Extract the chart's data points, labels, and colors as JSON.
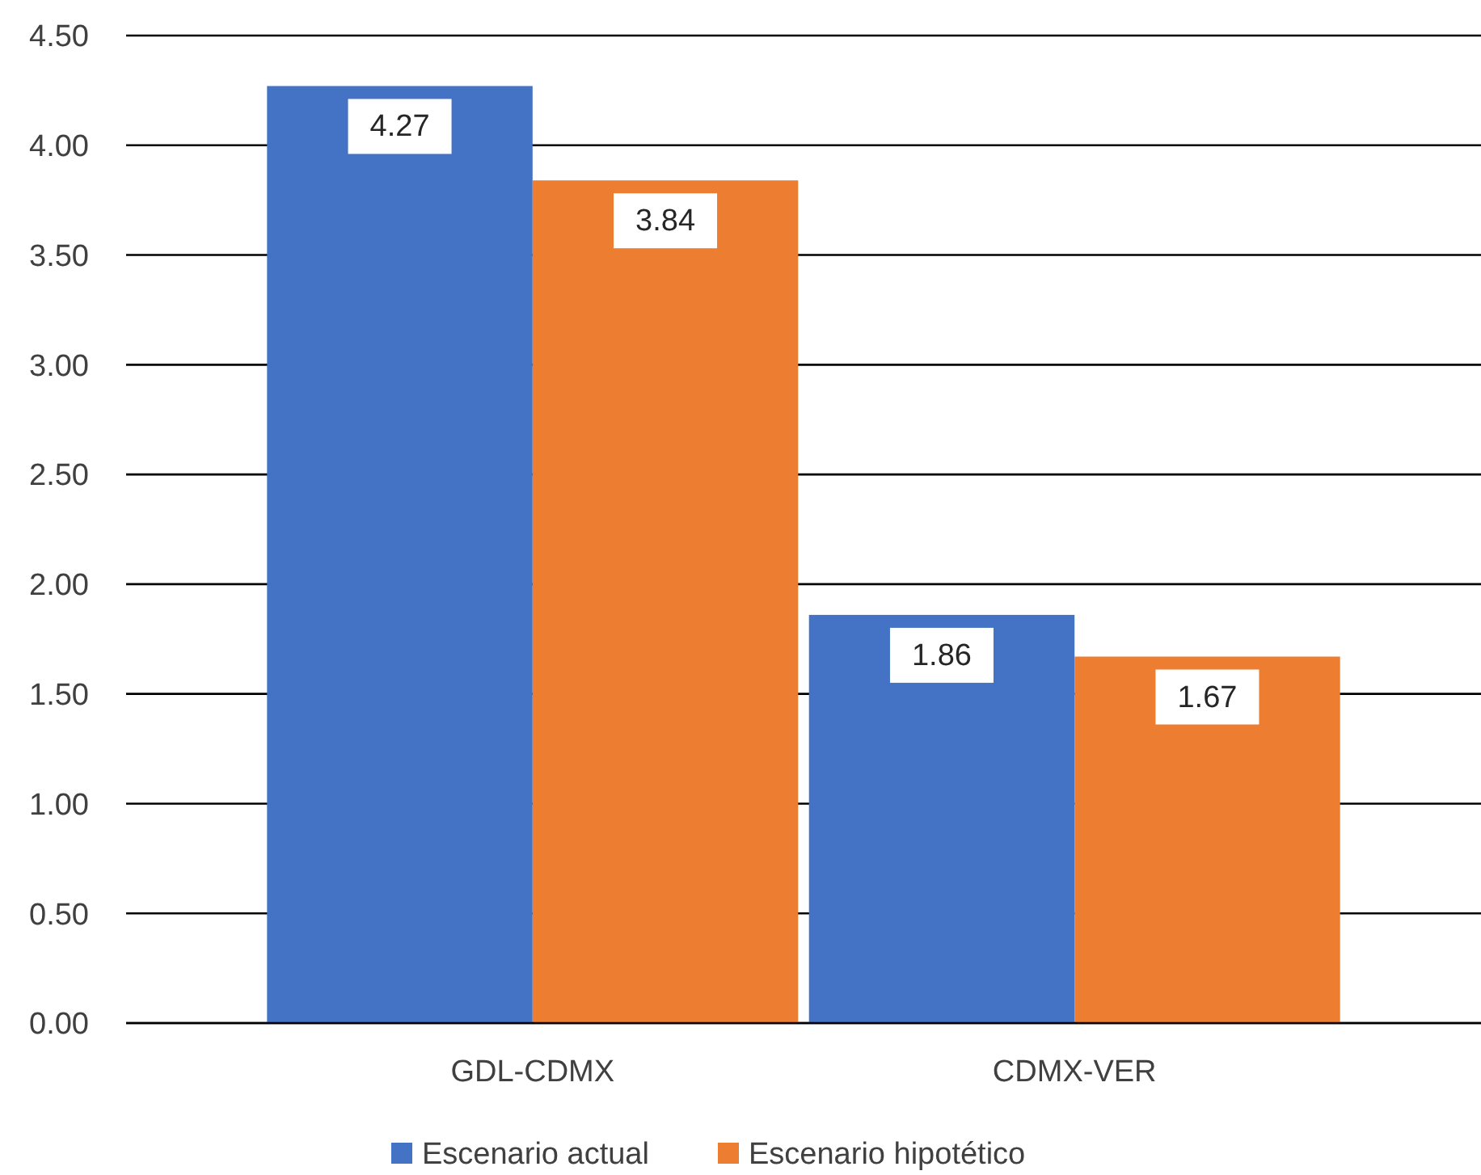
{
  "chart_data": {
    "type": "bar",
    "categories": [
      "GDL-CDMX",
      "CDMX-VER"
    ],
    "series": [
      {
        "name": "Escenario actual",
        "color": "#4472c4",
        "values": [
          4.27,
          1.86
        ]
      },
      {
        "name": "Escenario hipotético",
        "color": "#ed7d31",
        "values": [
          3.84,
          1.67
        ]
      }
    ],
    "ylim": [
      0,
      4.5
    ],
    "yticks": [
      {
        "value": 0,
        "label": "0.00"
      },
      {
        "value": 0.5,
        "label": "0.50"
      },
      {
        "value": 1,
        "label": "1.00"
      },
      {
        "value": 1.5,
        "label": "1.50"
      },
      {
        "value": 2,
        "label": "2.00"
      },
      {
        "value": 2.5,
        "label": "2.50"
      },
      {
        "value": 3,
        "label": "3.00"
      },
      {
        "value": 3.5,
        "label": "3.50"
      },
      {
        "value": 4,
        "label": "4.00"
      },
      {
        "value": 4.5,
        "label": "4.50"
      }
    ],
    "grid": "y",
    "legend": "bottom",
    "data_labels": true
  }
}
